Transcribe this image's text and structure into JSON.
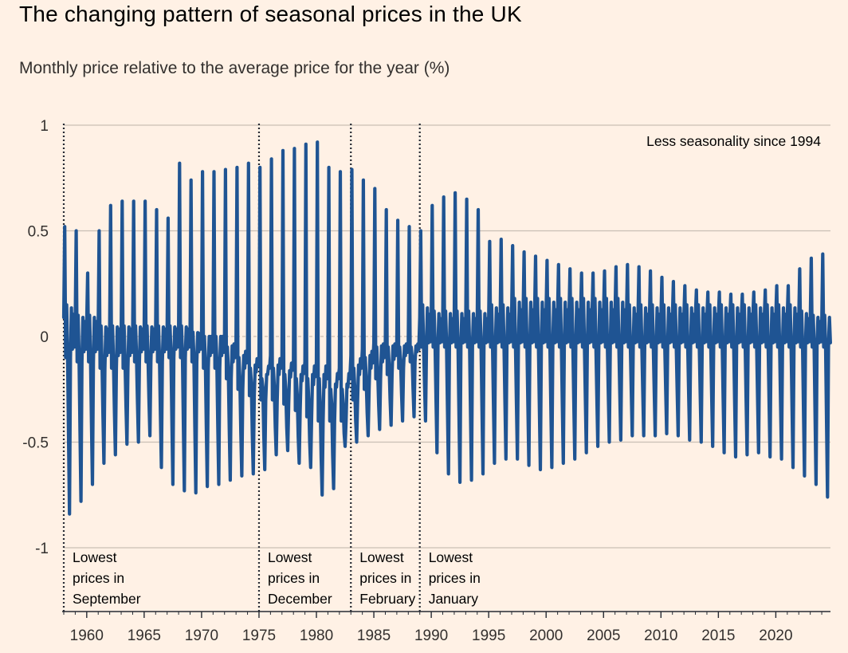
{
  "chart_data": {
    "type": "line",
    "title": "The changing pattern of seasonal prices in the UK",
    "subtitle": "Monthly price relative to the average price for the year (%)",
    "xlabel": "",
    "ylabel": "",
    "xlim": [
      1958,
      2024.8
    ],
    "ylim": [
      -1.3,
      1
    ],
    "y_ticks": [
      1,
      0.5,
      0,
      -0.5,
      -1
    ],
    "y_tick_labels": [
      "1",
      "0.5",
      "0",
      "-0.5",
      "-1"
    ],
    "x_ticks": [
      1960,
      1965,
      1970,
      1975,
      1980,
      1985,
      1990,
      1995,
      2000,
      2005,
      2010,
      2015,
      2020
    ],
    "x_tick_labels": [
      "1960",
      "1965",
      "1970",
      "1975",
      "1980",
      "1985",
      "1990",
      "1995",
      "2000",
      "2005",
      "2010",
      "2015",
      "2020"
    ],
    "grid": "horizontal",
    "series_color": "#1F5493",
    "annotation_top_right": "Less seasonality since 1994",
    "regime_breaks": [
      1958,
      1975,
      1983,
      1989
    ],
    "regimes": [
      {
        "lines": [
          "Lowest",
          "prices in",
          "September"
        ]
      },
      {
        "lines": [
          "Lowest",
          "prices in",
          "December"
        ]
      },
      {
        "lines": [
          "Lowest",
          "prices in",
          "February"
        ]
      },
      {
        "lines": [
          "Lowest",
          "prices in",
          "January"
        ]
      }
    ],
    "series": [
      {
        "description": "Monthly seasonal price factor (%), one peak and one trough per year",
        "years": [
          1958,
          1959,
          1960,
          1961,
          1962,
          1963,
          1964,
          1965,
          1966,
          1967,
          1968,
          1969,
          1970,
          1971,
          1972,
          1973,
          1974,
          1975,
          1976,
          1977,
          1978,
          1979,
          1980,
          1981,
          1982,
          1983,
          1984,
          1985,
          1986,
          1987,
          1988,
          1989,
          1990,
          1991,
          1992,
          1993,
          1994,
          1995,
          1996,
          1997,
          1998,
          1999,
          2000,
          2001,
          2002,
          2003,
          2004,
          2005,
          2006,
          2007,
          2008,
          2009,
          2010,
          2011,
          2012,
          2013,
          2014,
          2015,
          2016,
          2017,
          2018,
          2019,
          2020,
          2021,
          2022,
          2023,
          2024
        ],
        "peaks": [
          0.52,
          0.5,
          0.3,
          0.5,
          0.62,
          0.64,
          0.64,
          0.64,
          0.6,
          0.56,
          0.82,
          0.74,
          0.78,
          0.78,
          0.79,
          0.8,
          0.82,
          0.8,
          0.84,
          0.88,
          0.89,
          0.91,
          0.92,
          0.8,
          0.78,
          0.79,
          0.74,
          0.7,
          0.6,
          0.55,
          0.52,
          0.5,
          0.62,
          0.66,
          0.68,
          0.65,
          0.6,
          0.45,
          0.46,
          0.43,
          0.4,
          0.38,
          0.36,
          0.34,
          0.32,
          0.3,
          0.3,
          0.31,
          0.33,
          0.34,
          0.33,
          0.31,
          0.28,
          0.26,
          0.24,
          0.22,
          0.21,
          0.21,
          0.2,
          0.2,
          0.21,
          0.22,
          0.24,
          0.24,
          0.32,
          0.37,
          0.39
        ],
        "troughs": [
          -0.84,
          -0.78,
          -0.7,
          -0.6,
          -0.56,
          -0.51,
          -0.5,
          -0.47,
          -0.62,
          -0.7,
          -0.73,
          -0.74,
          -0.71,
          -0.7,
          -0.68,
          -0.66,
          -0.65,
          -0.63,
          -0.56,
          -0.54,
          -0.6,
          -0.62,
          -0.75,
          -0.72,
          -0.52,
          -0.5,
          -0.47,
          -0.44,
          -0.42,
          -0.4,
          -0.38,
          -0.4,
          -0.55,
          -0.65,
          -0.69,
          -0.68,
          -0.65,
          -0.6,
          -0.58,
          -0.58,
          -0.61,
          -0.63,
          -0.62,
          -0.6,
          -0.58,
          -0.55,
          -0.52,
          -0.5,
          -0.49,
          -0.47,
          -0.47,
          -0.47,
          -0.46,
          -0.47,
          -0.49,
          -0.5,
          -0.52,
          -0.55,
          -0.57,
          -0.56,
          -0.55,
          -0.57,
          -0.58,
          -0.62,
          -0.66,
          -0.7,
          -0.76
        ],
        "mid_high": [
          0.15,
          0.1,
          0.1,
          0.05,
          0.05,
          0.05,
          0.05,
          0.05,
          0.05,
          0.05,
          0.05,
          0.02,
          0.0,
          0.0,
          -0.05,
          -0.1,
          -0.15,
          -0.2,
          -0.15,
          -0.18,
          -0.2,
          -0.2,
          -0.2,
          -0.25,
          -0.25,
          -0.15,
          -0.1,
          -0.05,
          -0.05,
          -0.05,
          -0.05,
          0.15,
          0.12,
          0.12,
          0.12,
          0.12,
          0.12,
          0.15,
          0.15,
          0.18,
          0.18,
          0.18,
          0.18,
          0.18,
          0.18,
          0.18,
          0.18,
          0.18,
          0.18,
          0.15,
          0.15,
          0.15,
          0.15,
          0.15,
          0.15,
          0.15,
          0.15,
          0.15,
          0.15,
          0.15,
          0.15,
          0.15,
          0.15,
          0.15,
          0.12,
          0.1,
          0.1
        ],
        "mid_low": [
          -0.1,
          -0.12,
          -0.12,
          -0.15,
          -0.15,
          -0.15,
          -0.12,
          -0.12,
          -0.12,
          -0.1,
          -0.1,
          -0.12,
          -0.15,
          -0.15,
          -0.2,
          -0.25,
          -0.28,
          -0.3,
          -0.3,
          -0.32,
          -0.35,
          -0.38,
          -0.4,
          -0.4,
          -0.4,
          -0.3,
          -0.25,
          -0.2,
          -0.18,
          -0.15,
          -0.12,
          -0.05,
          -0.05,
          -0.05,
          -0.05,
          -0.05,
          -0.05,
          -0.05,
          -0.05,
          -0.05,
          -0.05,
          -0.05,
          -0.05,
          -0.05,
          -0.05,
          -0.05,
          -0.05,
          -0.05,
          -0.05,
          -0.05,
          -0.05,
          -0.05,
          -0.05,
          -0.05,
          -0.05,
          -0.05,
          -0.05,
          -0.05,
          -0.05,
          -0.05,
          -0.05,
          -0.05,
          -0.05,
          -0.05,
          -0.05,
          -0.05,
          -0.05
        ]
      }
    ]
  }
}
